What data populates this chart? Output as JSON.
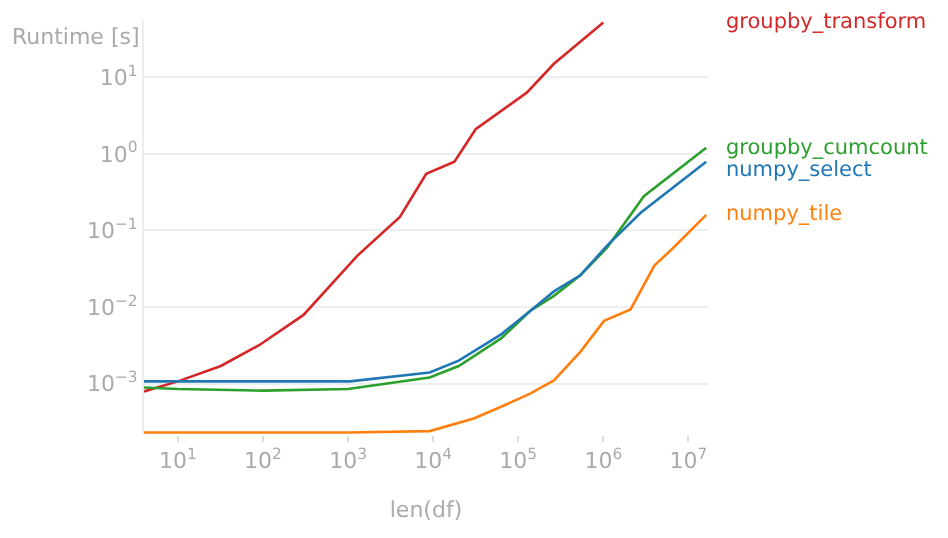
{
  "chart_data": {
    "type": "line",
    "xlabel": "len(df)",
    "ylabel": "Runtime [s]",
    "log": "xy",
    "grid": "y",
    "legend": false,
    "marker": "none",
    "line_style": "solid",
    "xlim": [
      4,
      17000000
    ],
    "ylim": [
      0.00022,
      56
    ],
    "xticks": [
      {
        "value": 10,
        "label": "10$^{1}$"
      },
      {
        "value": 100,
        "label": "10$^{2}$"
      },
      {
        "value": 1000,
        "label": "10$^{3}$"
      },
      {
        "value": 10000,
        "label": "10$^{4}$"
      },
      {
        "value": 100000,
        "label": "10$^{5}$"
      },
      {
        "value": 1000000,
        "label": "10$^{6}$"
      },
      {
        "value": 10000000,
        "label": "10$^{7}$"
      }
    ],
    "yticks": [
      {
        "value": 0.001,
        "label": "10$^{−3}$"
      },
      {
        "value": 0.01,
        "label": "10$^{−2}$"
      },
      {
        "value": 0.1,
        "label": "10$^{−1}$"
      },
      {
        "value": 1,
        "label": "10$^{0}$"
      },
      {
        "value": 10,
        "label": "10$^{1}$"
      }
    ],
    "series": [
      {
        "name": "groupby_transform",
        "color": "#d62728",
        "x": [
          4,
          10,
          32,
          91,
          300,
          1290,
          4070,
          8300,
          17800,
          31600,
          126000,
          263000,
          1000000
        ],
        "values": [
          0.00079,
          0.00107,
          0.0017,
          0.0032,
          0.0079,
          0.047,
          0.15,
          0.55,
          0.79,
          2.1,
          6.3,
          15,
          52
        ]
      },
      {
        "name": "groupby_cumcount",
        "color": "#2ca02c",
        "x": [
          4,
          10,
          100,
          1000,
          9100,
          20000,
          63000,
          138000,
          263000,
          537000,
          1100000,
          3000000,
          16200000
        ],
        "values": [
          0.00089,
          0.00085,
          0.00081,
          0.00085,
          0.0012,
          0.0017,
          0.0039,
          0.0089,
          0.014,
          0.026,
          0.059,
          0.28,
          1.2
        ]
      },
      {
        "name": "numpy_select",
        "color": "#1f77b4",
        "x": [
          4,
          10,
          100,
          1050,
          9100,
          20000,
          63000,
          138000,
          263000,
          537000,
          1100000,
          2750000,
          16200000
        ],
        "values": [
          0.00107,
          0.00107,
          0.00107,
          0.00107,
          0.0014,
          0.002,
          0.0044,
          0.0089,
          0.016,
          0.026,
          0.063,
          0.17,
          0.79
        ]
      },
      {
        "name": "numpy_tile",
        "color": "#ff7f0e",
        "x": [
          4,
          100,
          1000,
          9100,
          30000,
          63000,
          138000,
          263000,
          537000,
          1020000,
          2090000,
          4000000,
          6300000,
          16200000
        ],
        "values": [
          0.00023,
          0.00023,
          0.00023,
          0.00024,
          0.00035,
          0.0005,
          0.00074,
          0.0011,
          0.0026,
          0.0066,
          0.0093,
          0.035,
          0.056,
          0.16
        ]
      }
    ]
  }
}
